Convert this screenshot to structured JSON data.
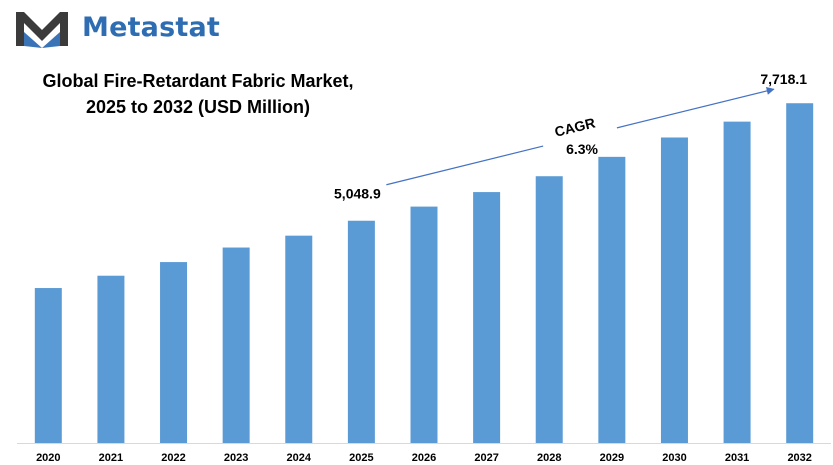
{
  "brand": {
    "name": "Metastat",
    "logo_icon": "metastat-m-logo",
    "colors": {
      "dark": "#3b3b3b",
      "accent": "#2f6db3"
    }
  },
  "chart_data": {
    "type": "bar",
    "title_line1": "Global Fire-Retardant Fabric Market,",
    "title_line2": "2025 to 2032 (USD Million)",
    "xlabel": "",
    "ylabel": "",
    "categories": [
      "2020",
      "2021",
      "2022",
      "2023",
      "2024",
      "2025",
      "2026",
      "2027",
      "2028",
      "2029",
      "2030",
      "2031",
      "2032"
    ],
    "values": [
      3520,
      3800,
      4110,
      4440,
      4710,
      5048.9,
      5370,
      5700,
      6060,
      6500,
      6940,
      7300,
      7718.1
    ],
    "ylim": [
      0,
      8700
    ],
    "bar_color": "#5b9bd5",
    "grid": false,
    "legend": "none",
    "annotations": {
      "start_label": "5,048.9",
      "end_label": "7,718.1",
      "cagr_label": "CAGR",
      "cagr_value": "6.3%",
      "arrow_color": "#4472c4"
    }
  }
}
